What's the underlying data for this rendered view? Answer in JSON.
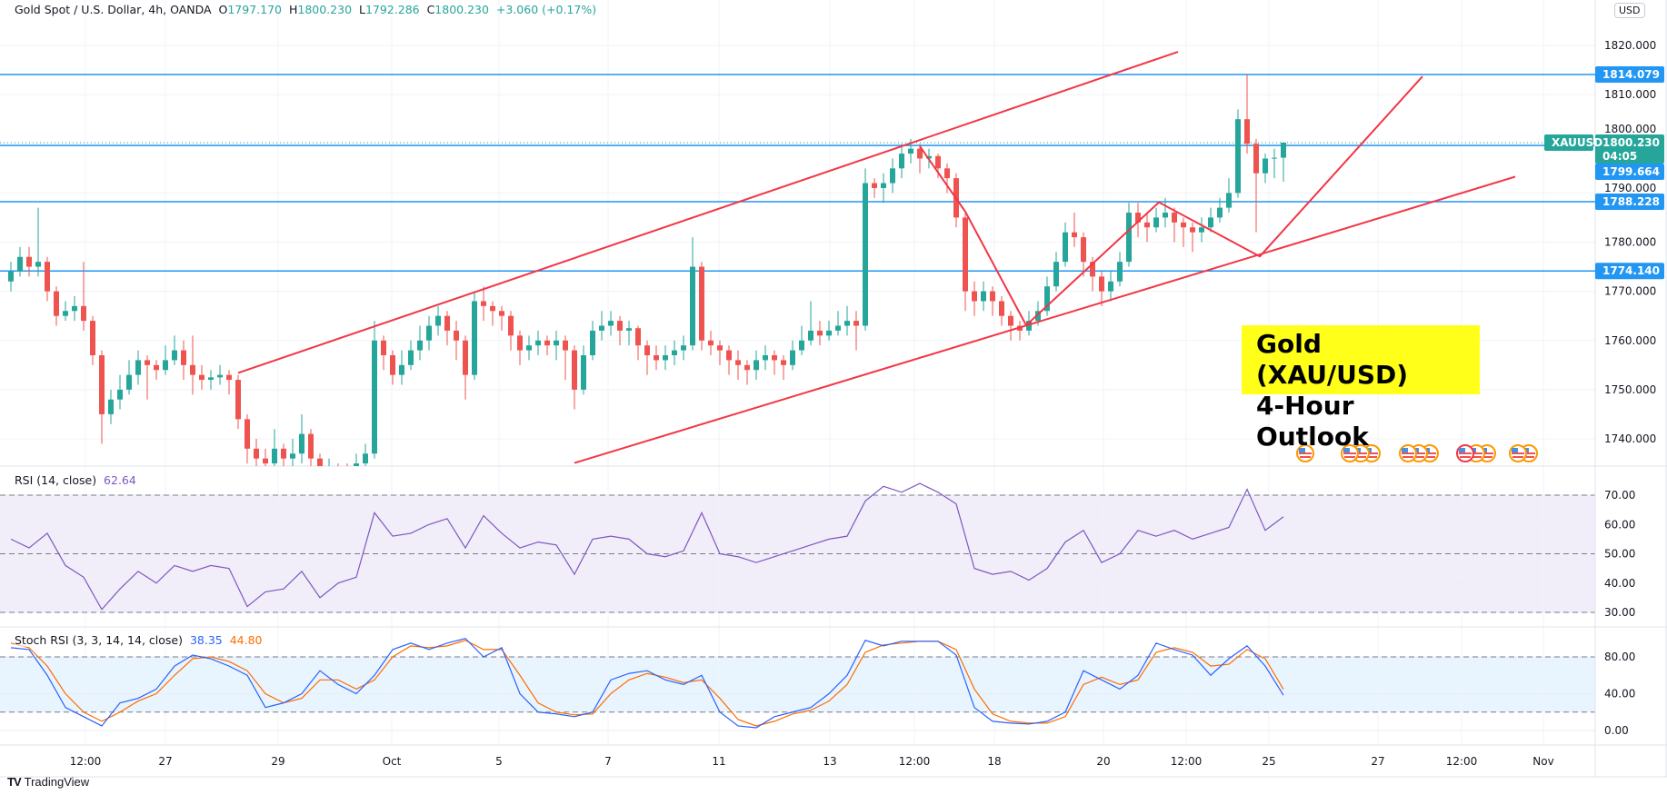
{
  "header": {
    "symbol": "Gold Spot / U.S. Dollar, 4h, OANDA",
    "open_label": "O",
    "open": "1797.170",
    "high_label": "H",
    "high": "1800.230",
    "low_label": "L",
    "low": "1792.286",
    "close_label": "C",
    "close": "1800.230",
    "change": "+3.060 (+0.17%)"
  },
  "currency_button": "USD",
  "callout": {
    "line1": "Gold (XAU/USD)",
    "line2": "4-Hour Outlook"
  },
  "brand": {
    "logo": "TV",
    "name": "TradingView"
  },
  "colors": {
    "up": "#26a69a",
    "down": "#ef5350",
    "level_line": "#2196f3",
    "trendline": "#f23645",
    "rsi": "#7e57c2",
    "stoch_k": "#2962ff",
    "stoch_d": "#ff6d00",
    "callout_bg": "#ffff1a"
  },
  "chart_data": {
    "type": "candlestick",
    "title": "Gold Spot / U.S. Dollar, 4h, OANDA",
    "ylim": [
      1734.45,
      1829
    ],
    "price_ticks": [
      "1820.000",
      "1810.000",
      "1800.000",
      "1790.000",
      "1780.000",
      "1770.000",
      "1760.000",
      "1750.000",
      "1740.000"
    ],
    "price_tick_values": [
      1820,
      1810,
      1800,
      1790,
      1780,
      1770,
      1760,
      1750,
      1740
    ],
    "time_ticks": [
      {
        "label": "12:00",
        "bar": 8.2
      },
      {
        "label": "27",
        "bar": 17
      },
      {
        "label": "29",
        "bar": 29.4
      },
      {
        "label": "Oct",
        "bar": 41.9
      },
      {
        "label": "5",
        "bar": 53.7
      },
      {
        "label": "7",
        "bar": 65.7
      },
      {
        "label": "11",
        "bar": 77.9
      },
      {
        "label": "13",
        "bar": 90.1
      },
      {
        "label": "12:00",
        "bar": 99.4
      },
      {
        "label": "18",
        "bar": 108.2
      },
      {
        "label": "20",
        "bar": 120.2
      },
      {
        "label": "12:00",
        "bar": 129.3
      },
      {
        "label": "25",
        "bar": 138.4
      },
      {
        "label": "27",
        "bar": 150.4
      },
      {
        "label": "12:00",
        "bar": 159.6
      },
      {
        "label": "Nov",
        "bar": 168.6
      }
    ],
    "candles_ohlc": [
      [
        1772,
        1776,
        1770,
        1774
      ],
      [
        1774,
        1779,
        1773,
        1777
      ],
      [
        1777,
        1779,
        1773,
        1775
      ],
      [
        1775,
        1787,
        1773,
        1776
      ],
      [
        1776,
        1777,
        1768,
        1770
      ],
      [
        1770,
        1771,
        1763,
        1765
      ],
      [
        1765,
        1768,
        1764,
        1766
      ],
      [
        1766,
        1769,
        1764,
        1767
      ],
      [
        1767,
        1776,
        1762,
        1764
      ],
      [
        1764,
        1765,
        1755,
        1757
      ],
      [
        1757,
        1758,
        1739,
        1745
      ],
      [
        1745,
        1750,
        1743,
        1748
      ],
      [
        1748,
        1753,
        1746,
        1750
      ],
      [
        1750,
        1756,
        1749,
        1753
      ],
      [
        1753,
        1758,
        1751,
        1756
      ],
      [
        1756,
        1757,
        1748,
        1755
      ],
      [
        1755,
        1756,
        1752,
        1754
      ],
      [
        1754,
        1759,
        1753,
        1756
      ],
      [
        1756,
        1761,
        1755,
        1758
      ],
      [
        1758,
        1760,
        1752,
        1755
      ],
      [
        1755,
        1761,
        1749,
        1753
      ],
      [
        1753,
        1755,
        1750,
        1752
      ],
      [
        1752,
        1754,
        1750,
        1752.5
      ],
      [
        1752.5,
        1755,
        1751,
        1753
      ],
      [
        1753,
        1754,
        1749,
        1752
      ],
      [
        1752,
        1753,
        1742,
        1744
      ],
      [
        1744,
        1745,
        1735,
        1738
      ],
      [
        1738,
        1740,
        1733,
        1736
      ],
      [
        1736,
        1738,
        1732,
        1735
      ],
      [
        1735,
        1742,
        1733,
        1738
      ],
      [
        1738,
        1739,
        1733,
        1736
      ],
      [
        1736,
        1740,
        1734,
        1737
      ],
      [
        1737,
        1745,
        1735,
        1741
      ],
      [
        1741,
        1742,
        1734,
        1736
      ],
      [
        1736,
        1737,
        1730,
        1733
      ],
      [
        1733,
        1736,
        1731,
        1734
      ],
      [
        1734,
        1735,
        1731,
        1733
      ],
      [
        1733,
        1735,
        1730,
        1732
      ],
      [
        1732,
        1737,
        1731,
        1735
      ],
      [
        1735,
        1739,
        1733,
        1737
      ],
      [
        1737,
        1764,
        1736,
        1760
      ],
      [
        1760,
        1761,
        1754,
        1757
      ],
      [
        1757,
        1758,
        1751,
        1753
      ],
      [
        1753,
        1758,
        1751,
        1755
      ],
      [
        1755,
        1760,
        1754,
        1758
      ],
      [
        1758,
        1763,
        1756,
        1760
      ],
      [
        1760,
        1765,
        1758,
        1763
      ],
      [
        1763,
        1767,
        1761,
        1765
      ],
      [
        1765,
        1766,
        1759,
        1762
      ],
      [
        1762,
        1764,
        1756,
        1760
      ],
      [
        1760,
        1761,
        1748,
        1753
      ],
      [
        1753,
        1770,
        1752,
        1768
      ],
      [
        1768,
        1771,
        1764,
        1767
      ],
      [
        1767,
        1768,
        1763,
        1766
      ],
      [
        1766,
        1767,
        1762,
        1765
      ],
      [
        1765,
        1766,
        1758,
        1761
      ],
      [
        1761,
        1762,
        1755,
        1758
      ],
      [
        1758,
        1761,
        1756,
        1759
      ],
      [
        1759,
        1762,
        1757,
        1760
      ],
      [
        1760,
        1761,
        1757,
        1759
      ],
      [
        1759,
        1762,
        1756,
        1760
      ],
      [
        1760,
        1761,
        1752,
        1758
      ],
      [
        1758,
        1759,
        1746,
        1750
      ],
      [
        1750,
        1759,
        1749,
        1757
      ],
      [
        1757,
        1764,
        1756,
        1762
      ],
      [
        1762,
        1766,
        1760,
        1763
      ],
      [
        1763,
        1766,
        1761,
        1764
      ],
      [
        1764,
        1765,
        1759,
        1762
      ],
      [
        1762,
        1764,
        1759,
        1762.5
      ],
      [
        1762.5,
        1763,
        1756,
        1759
      ],
      [
        1759,
        1760,
        1753,
        1757
      ],
      [
        1757,
        1759,
        1754,
        1756
      ],
      [
        1756,
        1759,
        1754,
        1757
      ],
      [
        1757,
        1760,
        1755,
        1758
      ],
      [
        1758,
        1761,
        1756,
        1759
      ],
      [
        1759,
        1781,
        1758,
        1775
      ],
      [
        1775,
        1776,
        1758,
        1760
      ],
      [
        1760,
        1762,
        1757,
        1759
      ],
      [
        1759,
        1760,
        1755,
        1758
      ],
      [
        1758,
        1759,
        1753,
        1756
      ],
      [
        1756,
        1758,
        1752,
        1755
      ],
      [
        1755,
        1756,
        1751,
        1754
      ],
      [
        1754,
        1758,
        1752,
        1756
      ],
      [
        1756,
        1759,
        1754,
        1757
      ],
      [
        1757,
        1758,
        1753,
        1756
      ],
      [
        1756,
        1757,
        1752,
        1755
      ],
      [
        1755,
        1760,
        1754,
        1758
      ],
      [
        1758,
        1763,
        1757,
        1760
      ],
      [
        1760,
        1768,
        1759,
        1762
      ],
      [
        1762,
        1764,
        1759,
        1761
      ],
      [
        1761,
        1764,
        1760,
        1762
      ],
      [
        1762,
        1766,
        1761,
        1763
      ],
      [
        1763,
        1767,
        1761,
        1764
      ],
      [
        1764,
        1766,
        1758,
        1763
      ],
      [
        1763,
        1795,
        1762,
        1792
      ],
      [
        1792,
        1793,
        1789,
        1791
      ],
      [
        1791,
        1794,
        1788,
        1792
      ],
      [
        1792,
        1797,
        1790,
        1795
      ],
      [
        1795,
        1800,
        1793,
        1798
      ],
      [
        1798,
        1801,
        1796,
        1799
      ],
      [
        1799,
        1800,
        1794,
        1797
      ],
      [
        1797,
        1799,
        1795,
        1797.5
      ],
      [
        1797.5,
        1798,
        1793,
        1795
      ],
      [
        1795,
        1796,
        1790,
        1793
      ],
      [
        1793,
        1794,
        1783,
        1785
      ],
      [
        1785,
        1786,
        1766,
        1770
      ],
      [
        1770,
        1772,
        1765,
        1768
      ],
      [
        1768,
        1772,
        1766,
        1770
      ],
      [
        1770,
        1771,
        1765,
        1768
      ],
      [
        1768,
        1769,
        1763,
        1765
      ],
      [
        1765,
        1766,
        1760,
        1763
      ],
      [
        1763,
        1764,
        1760,
        1762
      ],
      [
        1762,
        1766,
        1761,
        1764
      ],
      [
        1764,
        1768,
        1763,
        1766
      ],
      [
        1766,
        1773,
        1765,
        1771
      ],
      [
        1771,
        1778,
        1770,
        1776
      ],
      [
        1776,
        1784,
        1775,
        1782
      ],
      [
        1782,
        1786,
        1779,
        1781
      ],
      [
        1781,
        1782,
        1773,
        1776
      ],
      [
        1776,
        1777,
        1770,
        1773
      ],
      [
        1773,
        1774,
        1767,
        1770
      ],
      [
        1770,
        1774,
        1768,
        1772
      ],
      [
        1772,
        1778,
        1771,
        1776
      ],
      [
        1776,
        1788,
        1775,
        1786
      ],
      [
        1786,
        1788,
        1781,
        1784
      ],
      [
        1784,
        1786,
        1780,
        1783
      ],
      [
        1783,
        1787,
        1782,
        1785
      ],
      [
        1785,
        1789,
        1783,
        1786
      ],
      [
        1786,
        1787,
        1780,
        1784
      ],
      [
        1784,
        1785,
        1779,
        1783
      ],
      [
        1783,
        1784,
        1778,
        1782
      ],
      [
        1782,
        1785,
        1780,
        1783
      ],
      [
        1783,
        1787,
        1782,
        1785
      ],
      [
        1785,
        1789,
        1784,
        1787
      ],
      [
        1787,
        1793,
        1786,
        1790
      ],
      [
        1790,
        1807,
        1789,
        1805
      ],
      [
        1805,
        1814.079,
        1798,
        1800
      ],
      [
        1800,
        1801,
        1782,
        1794
      ],
      [
        1794,
        1798,
        1792,
        1797
      ],
      [
        1797,
        1799,
        1793,
        1797.17
      ],
      [
        1797.17,
        1800.23,
        1792.286,
        1800.23
      ]
    ],
    "horizontal_levels": [
      {
        "price": 1814.079,
        "label": "1814.079"
      },
      {
        "price": 1799.664,
        "label": "1799.664"
      },
      {
        "price": 1788.228,
        "label": "1788.228"
      },
      {
        "price": 1774.14,
        "label": "1774.140"
      }
    ],
    "last_price": {
      "symbol": "XAUUSD",
      "price": 1800.23,
      "label": "1800.230",
      "countdown": "04:05"
    },
    "trendlines": [
      {
        "name": "channel-upper",
        "points": [
          [
            25,
            1753.4
          ],
          [
            128.4,
            1818.7
          ]
        ]
      },
      {
        "name": "channel-lower",
        "points": [
          [
            62,
            1735.1
          ],
          [
            165.5,
            1793.3
          ]
        ]
      },
      {
        "name": "zigzag",
        "points": [
          [
            100,
            1799.5
          ],
          [
            105,
            1786.2
          ],
          [
            111.7,
            1763.1
          ],
          [
            126.3,
            1788.1
          ],
          [
            137.4,
            1777.1
          ],
          [
            155.3,
            1813.7
          ]
        ]
      }
    ],
    "event_flags": [
      {
        "bar": 142.4,
        "count": 1
      },
      {
        "bar": 147.3,
        "count": 3
      },
      {
        "bar": 153.7,
        "count": 3
      },
      {
        "bar": 160,
        "count": 3,
        "highlight": true
      },
      {
        "bar": 165.8,
        "count": 2
      }
    ],
    "rsi": {
      "label": "RSI (14, close)",
      "value": "62.64",
      "ylim": [
        25,
        80
      ],
      "bands": [
        30,
        50,
        70
      ],
      "ticks": [
        "70.00",
        "60.00",
        "50.00",
        "40.00",
        "30.00"
      ],
      "tick_values": [
        70,
        60,
        50,
        40,
        30
      ],
      "bar_step": 2,
      "values": [
        55,
        52,
        57,
        46,
        42,
        31,
        38,
        44,
        40,
        46,
        44,
        46,
        45,
        32,
        37,
        38,
        44,
        35,
        40,
        42,
        64,
        56,
        57,
        60,
        62,
        52,
        63,
        57,
        52,
        54,
        53,
        43,
        55,
        56,
        55,
        50,
        49,
        51,
        64,
        50,
        49,
        47,
        49,
        51,
        53,
        55,
        56,
        68,
        73,
        71,
        74,
        71,
        67,
        45,
        43,
        44,
        41,
        45,
        54,
        58,
        47,
        50,
        58,
        56,
        58,
        55,
        57,
        59,
        72,
        58,
        62.64
      ]
    },
    "stoch_rsi": {
      "label": "Stoch RSI (3, 3, 14, 14, close)",
      "k_value": "38.35",
      "d_value": "44.80",
      "ylim": [
        -12,
        115
      ],
      "bands": [
        20,
        80
      ],
      "ticks": [
        "80.00",
        "40.00",
        "0.00"
      ],
      "tick_values": [
        80,
        40,
        0
      ],
      "bar_step": 2,
      "k": [
        90,
        88,
        60,
        25,
        15,
        5,
        30,
        35,
        45,
        70,
        82,
        78,
        70,
        60,
        25,
        30,
        40,
        65,
        50,
        40,
        60,
        88,
        95,
        88,
        95,
        100,
        80,
        90,
        40,
        20,
        18,
        15,
        20,
        55,
        62,
        65,
        55,
        50,
        60,
        20,
        5,
        3,
        15,
        20,
        25,
        40,
        60,
        98,
        92,
        97,
        97,
        97,
        82,
        25,
        10,
        8,
        7,
        10,
        20,
        65,
        55,
        45,
        60,
        95,
        88,
        82,
        60,
        78,
        92,
        70,
        38.35
      ],
      "d": [
        95,
        90,
        70,
        40,
        20,
        10,
        20,
        32,
        40,
        60,
        78,
        80,
        75,
        65,
        40,
        30,
        35,
        55,
        55,
        45,
        55,
        80,
        92,
        90,
        92,
        98,
        88,
        88,
        60,
        30,
        20,
        17,
        18,
        40,
        55,
        62,
        58,
        52,
        55,
        35,
        12,
        5,
        10,
        18,
        22,
        32,
        50,
        85,
        93,
        95,
        97,
        97,
        88,
        45,
        18,
        10,
        8,
        8,
        15,
        50,
        58,
        50,
        55,
        85,
        90,
        85,
        70,
        72,
        88,
        78,
        44.8
      ]
    }
  }
}
